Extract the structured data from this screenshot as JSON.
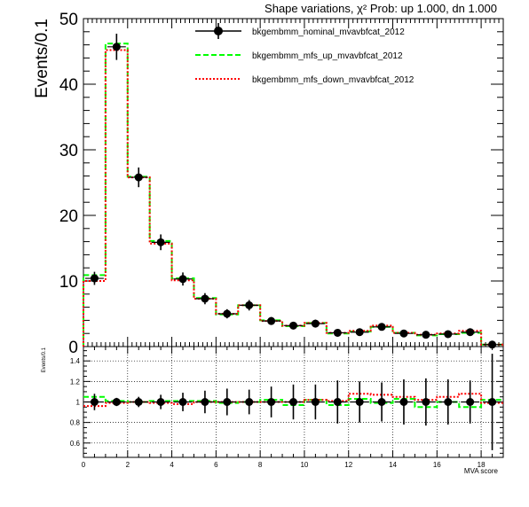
{
  "title": "Shape variations,   χ² Prob: up 1.000, dn 1.000",
  "chart_data": [
    {
      "type": "histogram",
      "panel": "main",
      "ylabel": "Events/0.1",
      "xlim": [
        0,
        19
      ],
      "ylim": [
        0,
        50
      ],
      "yticks": [
        "0",
        "10",
        "20",
        "30",
        "40",
        "50"
      ],
      "bin_edges": [
        0,
        1,
        2,
        3,
        4,
        5,
        6,
        7,
        8,
        9,
        10,
        11,
        12,
        13,
        14,
        15,
        16,
        17,
        18,
        19
      ],
      "legend_position": "top-right",
      "series": [
        {
          "name": "bkgembmm_nominal_mvavbfcat_2012",
          "style": "points",
          "color": "#000000",
          "values": [
            10.4,
            45.7,
            25.8,
            15.9,
            10.3,
            7.3,
            5.0,
            6.3,
            3.9,
            3.2,
            3.5,
            2.1,
            2.2,
            3.0,
            2.0,
            1.8,
            1.9,
            2.2,
            0.3
          ],
          "errors": [
            1.0,
            2.0,
            1.5,
            1.2,
            1.0,
            0.85,
            0.7,
            0.8,
            0.6,
            0.55,
            0.6,
            0.45,
            0.45,
            0.55,
            0.45,
            0.4,
            0.42,
            0.45,
            0.17
          ]
        },
        {
          "name": "bkgembmm_mfs_up_mvavbfcat_2012",
          "style": "dashed-step",
          "color": "#00ff00",
          "values": [
            10.9,
            46.2,
            25.9,
            16.1,
            10.4,
            7.4,
            4.9,
            6.3,
            4.0,
            3.1,
            3.6,
            2.0,
            2.3,
            3.0,
            2.1,
            1.7,
            1.9,
            2.1,
            0.3
          ]
        },
        {
          "name": "bkgembmm_mfs_down_mvavbfcat_2012",
          "style": "dotted-step",
          "color": "#ff0000",
          "values": [
            10.0,
            45.2,
            25.8,
            15.7,
            10.1,
            7.3,
            5.0,
            6.3,
            3.9,
            3.2,
            3.6,
            2.1,
            2.4,
            3.2,
            2.1,
            1.8,
            2.0,
            2.4,
            0.3
          ]
        }
      ]
    },
    {
      "type": "histogram",
      "panel": "ratio",
      "ylabel": "Events/0.1",
      "xlabel": "MVA score",
      "xlim": [
        0,
        19
      ],
      "ylim": [
        0.46,
        1.54
      ],
      "grid": true,
      "xticks": [
        "0",
        "2",
        "4",
        "6",
        "8",
        "10",
        "12",
        "14",
        "16",
        "18"
      ],
      "yticks": [
        "0.6",
        "0.8",
        "1",
        "1.2",
        "1.4"
      ],
      "series": [
        {
          "style": "points",
          "color": "#000000",
          "values": [
            1,
            1,
            1,
            1,
            1,
            1,
            1,
            1,
            1,
            1,
            1,
            1,
            1,
            1,
            1,
            1,
            1,
            1,
            1
          ],
          "errors": [
            0.08,
            0.04,
            0.05,
            0.07,
            0.09,
            0.11,
            0.13,
            0.12,
            0.15,
            0.17,
            0.17,
            0.21,
            0.2,
            0.19,
            0.22,
            0.23,
            0.22,
            0.21,
            0.47
          ]
        },
        {
          "style": "dashed-step",
          "color": "#00ff00",
          "values": [
            1.05,
            1.01,
            1.0,
            1.01,
            1.01,
            1.01,
            0.99,
            1.0,
            1.02,
            0.97,
            1.02,
            0.97,
            1.03,
            0.99,
            1.03,
            0.95,
            1.0,
            0.95,
            1.02
          ]
        },
        {
          "style": "dotted-step",
          "color": "#ff0000",
          "values": [
            0.96,
            0.99,
            1.0,
            0.99,
            0.98,
            1.0,
            1.0,
            1.0,
            1.0,
            1.0,
            1.02,
            1.01,
            1.08,
            1.07,
            1.05,
            1.02,
            1.05,
            1.08,
            0.99
          ]
        }
      ]
    }
  ]
}
